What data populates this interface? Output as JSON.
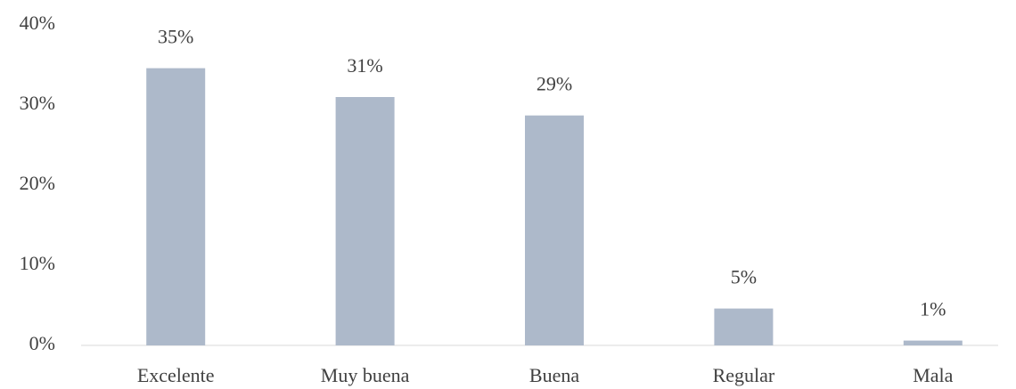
{
  "chart_data": {
    "type": "bar",
    "categories": [
      "Excelente",
      "Muy buena",
      "Buena",
      "Regular",
      "Mala"
    ],
    "values": [
      34.6,
      31.0,
      28.7,
      4.6,
      0.6
    ],
    "value_labels": [
      "35%",
      "31%",
      "29%",
      "5%",
      "1%"
    ],
    "color": "#adb9ca",
    "ylim": [
      0,
      40
    ],
    "yticks": [
      {
        "value": 0,
        "label": "0%"
      },
      {
        "value": 10,
        "label": "10%"
      },
      {
        "value": 20,
        "label": "20%"
      },
      {
        "value": 30,
        "label": "30%"
      },
      {
        "value": 40,
        "label": "40%"
      }
    ],
    "grid": false
  }
}
